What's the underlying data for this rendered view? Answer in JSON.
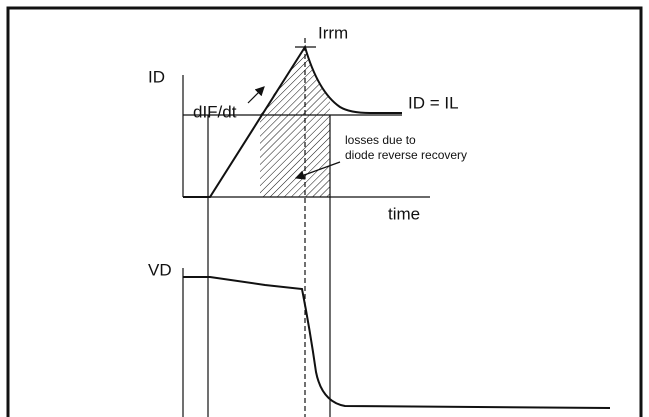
{
  "current": {
    "axis_label": "ID",
    "peak_label": "Irrm",
    "slope_label": "dIF/dt",
    "level_label": "ID = IL",
    "losses_label": [
      "losses due to",
      "diode reverse recovery"
    ],
    "time_label": "time"
  },
  "voltage": {
    "axis_label": "VD"
  }
}
